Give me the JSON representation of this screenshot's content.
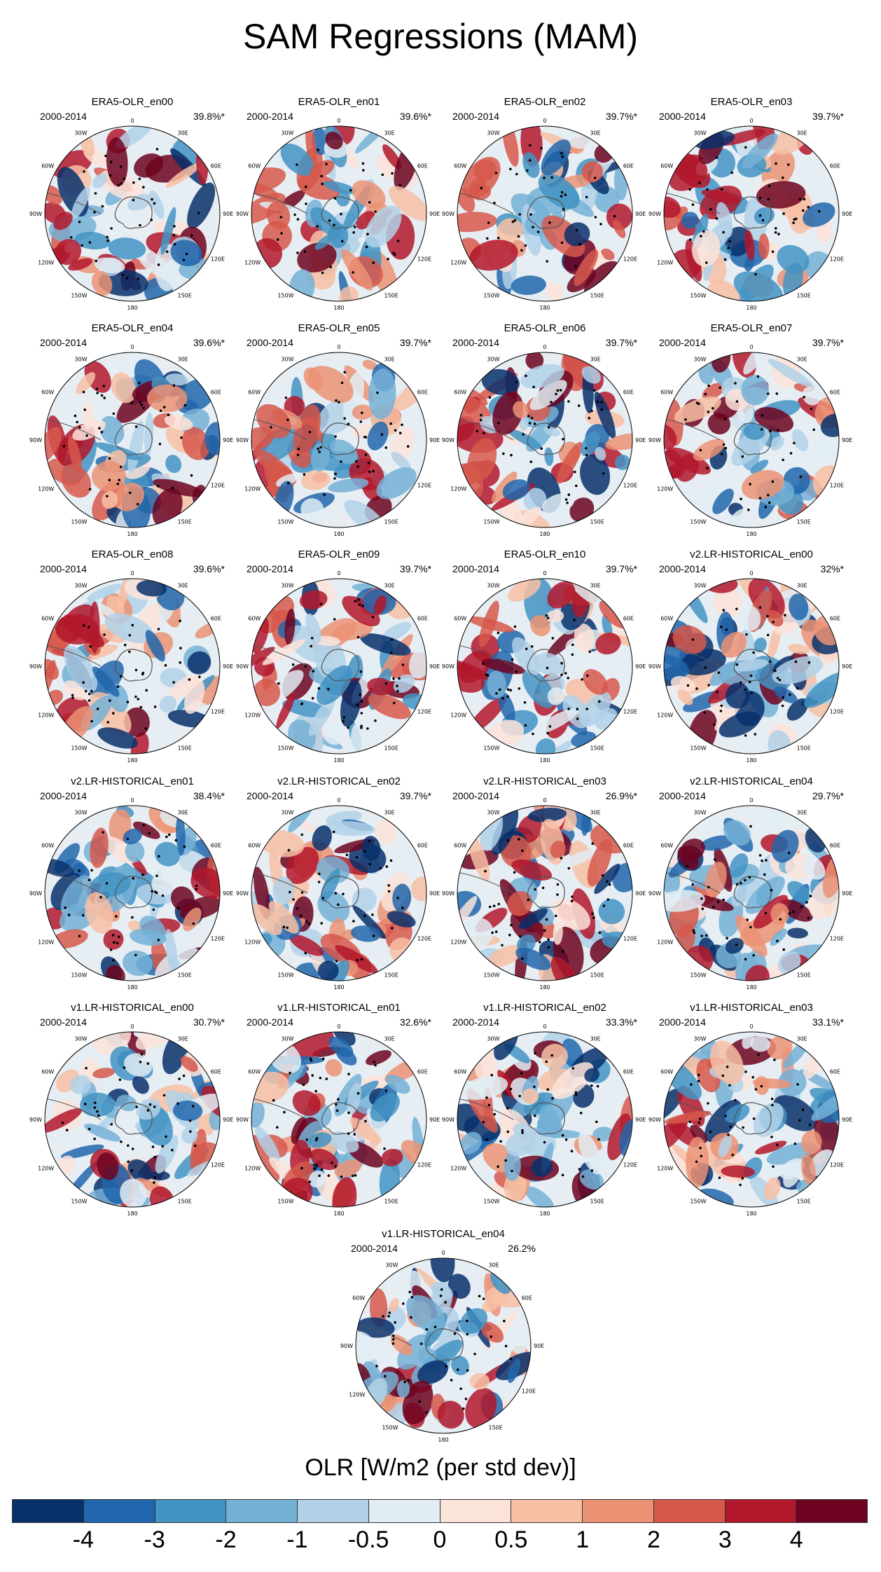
{
  "title": "SAM Regressions (MAM)",
  "lon_labels": [
    "0",
    "30E",
    "60E",
    "90E",
    "120E",
    "150E",
    "180",
    "150W",
    "120W",
    "90W",
    "60W",
    "30W"
  ],
  "panels": [
    {
      "name": "ERA5-OLR_en00",
      "period": "2000-2014",
      "pct": "39.8%*",
      "palette": "era5",
      "seed": 1
    },
    {
      "name": "ERA5-OLR_en01",
      "period": "2000-2014",
      "pct": "39.6%*",
      "palette": "era5",
      "seed": 2
    },
    {
      "name": "ERA5-OLR_en02",
      "period": "2000-2014",
      "pct": "39.7%*",
      "palette": "era5",
      "seed": 3
    },
    {
      "name": "ERA5-OLR_en03",
      "period": "2000-2014",
      "pct": "39.7%*",
      "palette": "era5",
      "seed": 4
    },
    {
      "name": "ERA5-OLR_en04",
      "period": "2000-2014",
      "pct": "39.6%*",
      "palette": "era5",
      "seed": 5
    },
    {
      "name": "ERA5-OLR_en05",
      "period": "2000-2014",
      "pct": "39.7%*",
      "palette": "era5",
      "seed": 6
    },
    {
      "name": "ERA5-OLR_en06",
      "period": "2000-2014",
      "pct": "39.7%*",
      "palette": "era5",
      "seed": 7
    },
    {
      "name": "ERA5-OLR_en07",
      "period": "2000-2014",
      "pct": "39.7%*",
      "palette": "era5",
      "seed": 8
    },
    {
      "name": "ERA5-OLR_en08",
      "period": "2000-2014",
      "pct": "39.6%*",
      "palette": "era5",
      "seed": 9
    },
    {
      "name": "ERA5-OLR_en09",
      "period": "2000-2014",
      "pct": "39.7%*",
      "palette": "era5",
      "seed": 10
    },
    {
      "name": "ERA5-OLR_en10",
      "period": "2000-2014",
      "pct": "39.7%*",
      "palette": "era5",
      "seed": 11
    },
    {
      "name": "v2.LR-HISTORICAL_en00",
      "period": "2000-2014",
      "pct": "32%*",
      "palette": "model",
      "seed": 12
    },
    {
      "name": "v2.LR-HISTORICAL_en01",
      "period": "2000-2014",
      "pct": "38.4%*",
      "palette": "model",
      "seed": 13
    },
    {
      "name": "v2.LR-HISTORICAL_en02",
      "period": "2000-2014",
      "pct": "39.7%*",
      "palette": "model",
      "seed": 14
    },
    {
      "name": "v2.LR-HISTORICAL_en03",
      "period": "2000-2014",
      "pct": "26.9%*",
      "palette": "model",
      "seed": 15
    },
    {
      "name": "v2.LR-HISTORICAL_en04",
      "period": "2000-2014",
      "pct": "29.7%*",
      "palette": "model",
      "seed": 16
    },
    {
      "name": "v1.LR-HISTORICAL_en00",
      "period": "2000-2014",
      "pct": "30.7%*",
      "palette": "model",
      "seed": 17
    },
    {
      "name": "v1.LR-HISTORICAL_en01",
      "period": "2000-2014",
      "pct": "32.6%*",
      "palette": "model",
      "seed": 18
    },
    {
      "name": "v1.LR-HISTORICAL_en02",
      "period": "2000-2014",
      "pct": "33.3%*",
      "palette": "model",
      "seed": 19
    },
    {
      "name": "v1.LR-HISTORICAL_en03",
      "period": "2000-2014",
      "pct": "33.1%*",
      "palette": "model",
      "seed": 20
    },
    {
      "name": "v1.LR-HISTORICAL_en04",
      "period": "2000-2014",
      "pct": "26.2%",
      "palette": "model",
      "seed": 21
    }
  ],
  "colorbar": {
    "title": "OLR [W/m2 (per std dev)]",
    "labels": [
      "-4",
      "-3",
      "-2",
      "-1",
      "-0.5",
      "0",
      "0.5",
      "1",
      "2",
      "3",
      "4"
    ],
    "colors": [
      "#08306b",
      "#2166ac",
      "#4393c3",
      "#74b0d6",
      "#b2d1e7",
      "#e1ecf3",
      "#fbe3d9",
      "#f7bfa4",
      "#eb9274",
      "#d6584b",
      "#b2182b",
      "#6d0320"
    ]
  }
}
